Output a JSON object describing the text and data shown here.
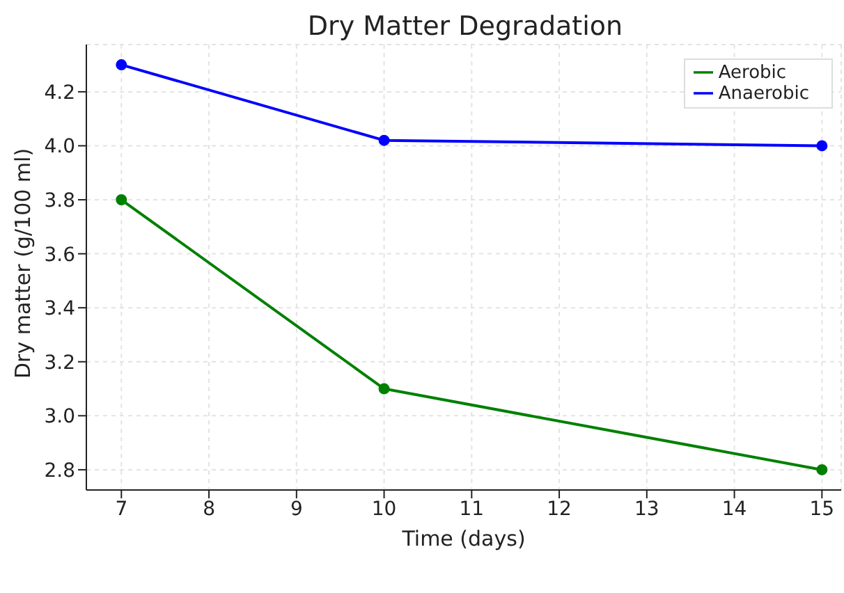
{
  "chart_data": {
    "type": "line",
    "title": "Dry Matter Degradation",
    "xlabel": "Time (days)",
    "ylabel": "Dry matter (g/100 ml)",
    "x": [
      7,
      10,
      15
    ],
    "series": [
      {
        "name": "Aerobic",
        "color": "#008000",
        "values": [
          3.8,
          3.1,
          2.8
        ]
      },
      {
        "name": "Anaerobic",
        "color": "#0000ff",
        "values": [
          4.3,
          4.02,
          4.0
        ]
      }
    ],
    "xlim": [
      6.6,
      15.22
    ],
    "xticks": [
      7,
      8,
      9,
      10,
      11,
      12,
      13,
      14,
      15
    ],
    "ylim": [
      2.725,
      4.375
    ],
    "yticks": [
      2.8,
      {
        "value": 3,
        "label": "3.0"
      },
      3.2,
      3.4,
      3.6,
      3.8,
      {
        "value": 4,
        "label": "4.0"
      },
      4.2
    ],
    "grid": true,
    "legend": "top right",
    "marker": "circle",
    "line_style": "solid"
  }
}
